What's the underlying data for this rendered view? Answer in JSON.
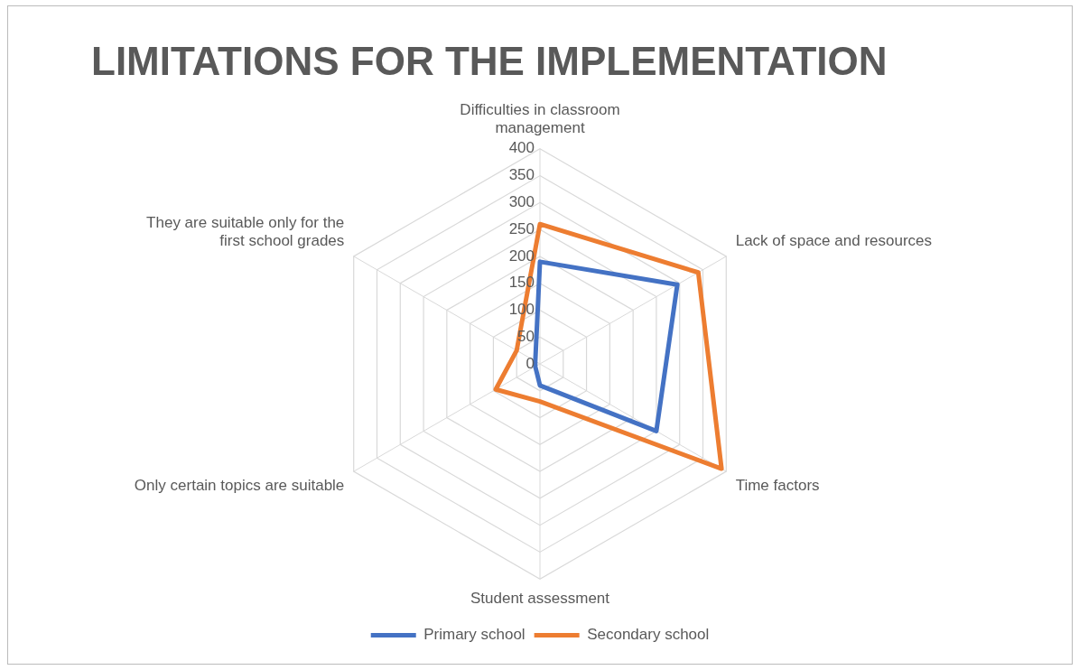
{
  "chart_data": {
    "type": "radar",
    "title": "LIMITATIONS FOR THE IMPLEMENTATION",
    "categories": [
      "Difficulties in classroom management",
      "Lack of space and resources",
      "Time factors",
      "Student assessment",
      "Only certain topics are suitable",
      "They are suitable only for the first school grades"
    ],
    "series": [
      {
        "name": "Primary school",
        "color": "#4472c4",
        "values": [
          190,
          295,
          250,
          40,
          10,
          10
        ]
      },
      {
        "name": "Secondary school",
        "color": "#ed7d31",
        "values": [
          260,
          340,
          390,
          70,
          95,
          50
        ]
      }
    ],
    "ylim": [
      0,
      400
    ],
    "yticks": [
      0,
      50,
      100,
      150,
      200,
      250,
      300,
      350,
      400
    ],
    "grid": true,
    "legend": "bottom",
    "marker": "none"
  }
}
